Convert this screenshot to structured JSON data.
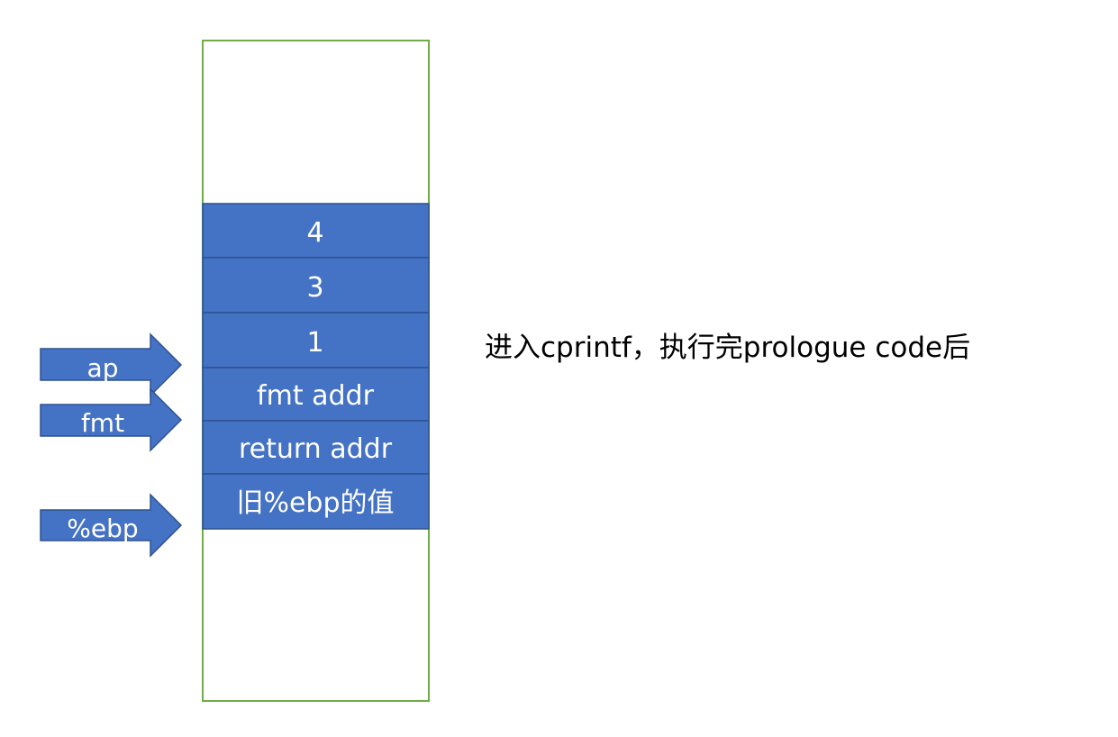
{
  "stack": {
    "cells": [
      {
        "label": "4"
      },
      {
        "label": "3"
      },
      {
        "label": "1"
      },
      {
        "label": "fmt addr"
      },
      {
        "label": "return addr"
      },
      {
        "label": "旧%ebp的值"
      }
    ]
  },
  "pointers": [
    {
      "label": "ap"
    },
    {
      "label": "fmt"
    },
    {
      "label": "%ebp"
    }
  ],
  "caption": "进入cprintf，执行完prologue code后",
  "colors": {
    "cell_fill": "#4472C4",
    "cell_border": "#2F528F",
    "stack_outline": "#70AD47",
    "arrow_fill": "#4472C4",
    "arrow_border": "#2F528F"
  }
}
